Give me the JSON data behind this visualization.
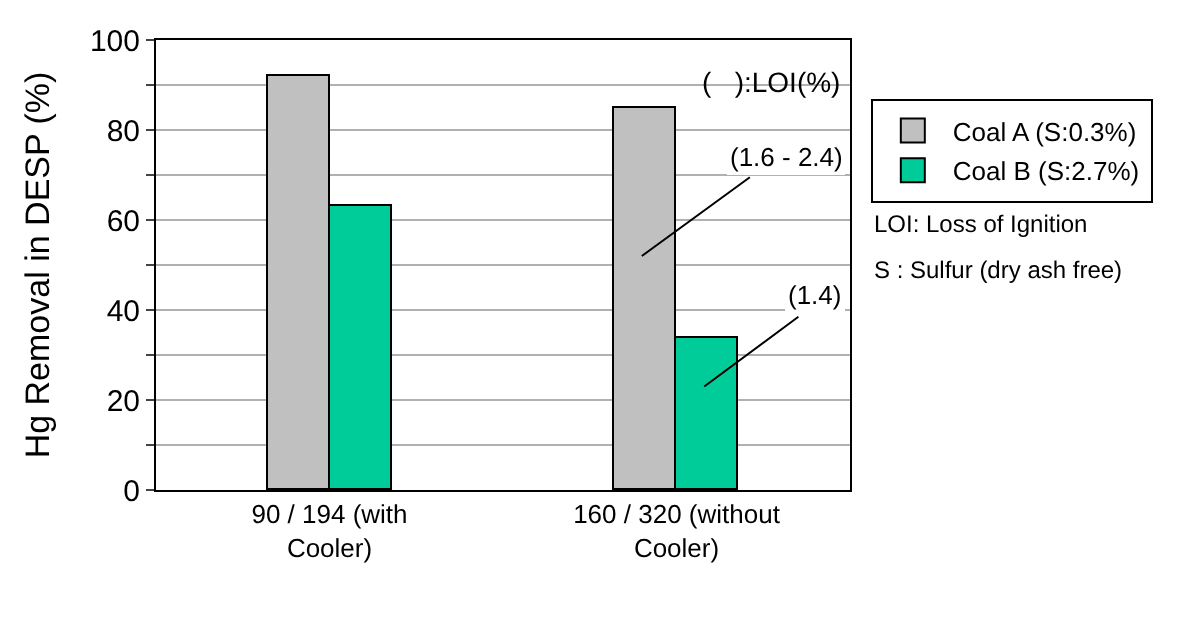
{
  "chart_data": {
    "type": "bar",
    "ylabel": "Hg Removal in DESP (%)",
    "categories": [
      "90 / 194 (with Cooler)",
      "160 / 320 (without Cooler)"
    ],
    "series": [
      {
        "name": "Coal A (S:0.3%)",
        "color": "#c0c0c0",
        "values": [
          92,
          85
        ]
      },
      {
        "name": "Coal B (S:2.7%)",
        "color": "#00cc99",
        "values": [
          63,
          34
        ]
      }
    ],
    "ylim": [
      0,
      100
    ],
    "yticks": [
      0,
      {
        "value": 10,
        "label": null
      },
      20,
      {
        "value": 30,
        "label": null
      },
      40,
      {
        "value": 50,
        "label": null
      },
      60,
      {
        "value": 70,
        "label": null
      },
      80,
      {
        "value": 90,
        "label": null
      },
      100
    ],
    "grid": "y",
    "legend": "top right",
    "annotations": [
      "(   ):LOI(%)",
      "(1.6 - 2.4)",
      "(1.4)",
      "LOI: Loss of Ignition",
      "S : Sulfur (dry ash free)"
    ]
  }
}
